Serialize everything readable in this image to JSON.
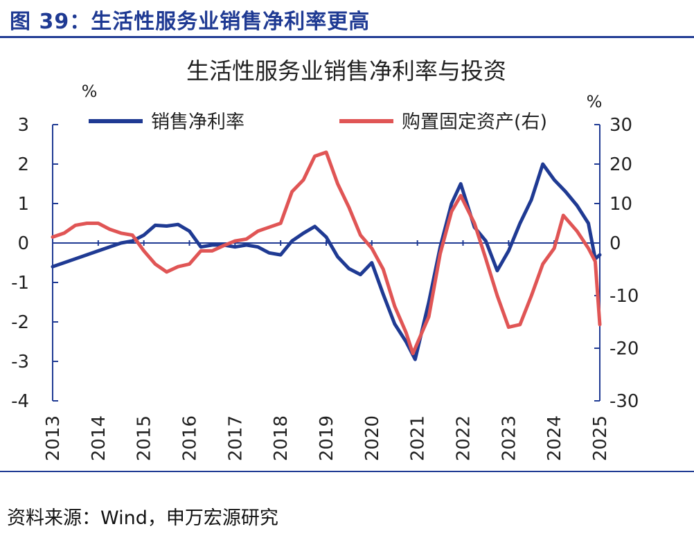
{
  "figure": {
    "title": "图 39：生活性服务业销售净利率更高",
    "source": "资料来源：Wind，申万宏源研究"
  },
  "colors": {
    "primary": "#1f3a93",
    "secondary": "#e05555"
  },
  "chart_data": {
    "type": "line",
    "title": "生活性服务业销售净利率与投资",
    "ylabel_left": "%",
    "ylabel_right": "%",
    "ylim_left": [
      -4,
      3
    ],
    "ylim_right": [
      -30,
      30
    ],
    "yticks_left": [
      "3",
      "2",
      "1",
      "0",
      "-1",
      "-2",
      "-3",
      "-4"
    ],
    "yticks_right": [
      "30",
      "20",
      "10",
      "0",
      "-10",
      "-20",
      "-30"
    ],
    "xlim": [
      2013,
      2025
    ],
    "xticks": [
      "2013",
      "2014",
      "2015",
      "2016",
      "2017",
      "2018",
      "2019",
      "2020",
      "2021",
      "2022",
      "2023",
      "2024",
      "2025"
    ],
    "legend_position": "top",
    "series": [
      {
        "name": "销售净利率",
        "axis": "left",
        "color": "#1f3a93",
        "points": [
          [
            2013,
            -0.6
          ],
          [
            2013.5,
            -0.4
          ],
          [
            2014,
            -0.2
          ],
          [
            2014.5,
            0.0
          ],
          [
            2014.75,
            0.05
          ],
          [
            2015,
            0.2
          ],
          [
            2015.25,
            0.45
          ],
          [
            2015.5,
            0.43
          ],
          [
            2015.75,
            0.47
          ],
          [
            2016,
            0.3
          ],
          [
            2016.25,
            -0.1
          ],
          [
            2016.5,
            -0.05
          ],
          [
            2016.75,
            -0.05
          ],
          [
            2017,
            -0.1
          ],
          [
            2017.25,
            -0.05
          ],
          [
            2017.5,
            -0.1
          ],
          [
            2017.75,
            -0.25
          ],
          [
            2018,
            -0.3
          ],
          [
            2018.25,
            0.05
          ],
          [
            2018.5,
            0.25
          ],
          [
            2018.75,
            0.42
          ],
          [
            2019,
            0.15
          ],
          [
            2019.25,
            -0.35
          ],
          [
            2019.5,
            -0.65
          ],
          [
            2019.75,
            -0.8
          ],
          [
            2020,
            -0.5
          ],
          [
            2020.25,
            -1.3
          ],
          [
            2020.5,
            -2.05
          ],
          [
            2020.75,
            -2.5
          ],
          [
            2020.95,
            -2.95
          ],
          [
            2021.25,
            -1.5
          ],
          [
            2021.5,
            -0.1
          ],
          [
            2021.75,
            1.0
          ],
          [
            2021.95,
            1.5
          ],
          [
            2022.25,
            0.4
          ],
          [
            2022.5,
            0.05
          ],
          [
            2022.75,
            -0.7
          ],
          [
            2023,
            -0.2
          ],
          [
            2023.25,
            0.5
          ],
          [
            2023.5,
            1.1
          ],
          [
            2023.75,
            2.0
          ],
          [
            2024,
            1.6
          ],
          [
            2024.25,
            1.3
          ],
          [
            2024.5,
            0.95
          ],
          [
            2024.75,
            0.5
          ],
          [
            2024.9,
            -0.4
          ],
          [
            2025,
            -0.3
          ]
        ]
      },
      {
        "name": "购置固定资产(右)",
        "axis": "right",
        "color": "#e05555",
        "points": [
          [
            2013,
            1.5
          ],
          [
            2013.25,
            2.5
          ],
          [
            2013.5,
            4.5
          ],
          [
            2013.75,
            5.0
          ],
          [
            2014,
            5.0
          ],
          [
            2014.25,
            3.5
          ],
          [
            2014.5,
            2.5
          ],
          [
            2014.75,
            2.0
          ],
          [
            2015,
            -1.5
          ],
          [
            2015.25,
            -4.0
          ],
          [
            2015.5,
            -5.5
          ],
          [
            2015.75,
            -4.5
          ],
          [
            2016,
            -4.0
          ],
          [
            2016.25,
            -1.5
          ],
          [
            2016.5,
            -1.5
          ],
          [
            2016.75,
            -0.5
          ],
          [
            2017,
            0.5
          ],
          [
            2017.25,
            1.0
          ],
          [
            2017.5,
            3.0
          ],
          [
            2017.75,
            4.0
          ],
          [
            2018,
            5.0
          ],
          [
            2018.25,
            13.0
          ],
          [
            2018.5,
            16.0
          ],
          [
            2018.75,
            22.0
          ],
          [
            2019,
            23.0
          ],
          [
            2019.25,
            15.0
          ],
          [
            2019.5,
            9.0
          ],
          [
            2019.75,
            2.0
          ],
          [
            2020,
            -1.0
          ],
          [
            2020.25,
            -5.0
          ],
          [
            2020.5,
            -12.0
          ],
          [
            2020.75,
            -17.0
          ],
          [
            2020.9,
            -21.0
          ],
          [
            2021.25,
            -14.0
          ],
          [
            2021.5,
            -2.0
          ],
          [
            2021.75,
            8.0
          ],
          [
            2021.95,
            12.0
          ],
          [
            2022.25,
            5.0
          ],
          [
            2022.5,
            -3.0
          ],
          [
            2022.75,
            -10.0
          ],
          [
            2023,
            -16.0
          ],
          [
            2023.25,
            -15.5
          ],
          [
            2023.5,
            -10.0
          ],
          [
            2023.75,
            -4.0
          ],
          [
            2024,
            -1.0
          ],
          [
            2024.2,
            7.0
          ],
          [
            2024.5,
            3.0
          ],
          [
            2024.75,
            -1.0
          ],
          [
            2024.9,
            -3.5
          ],
          [
            2025,
            -15.5
          ]
        ]
      }
    ]
  }
}
